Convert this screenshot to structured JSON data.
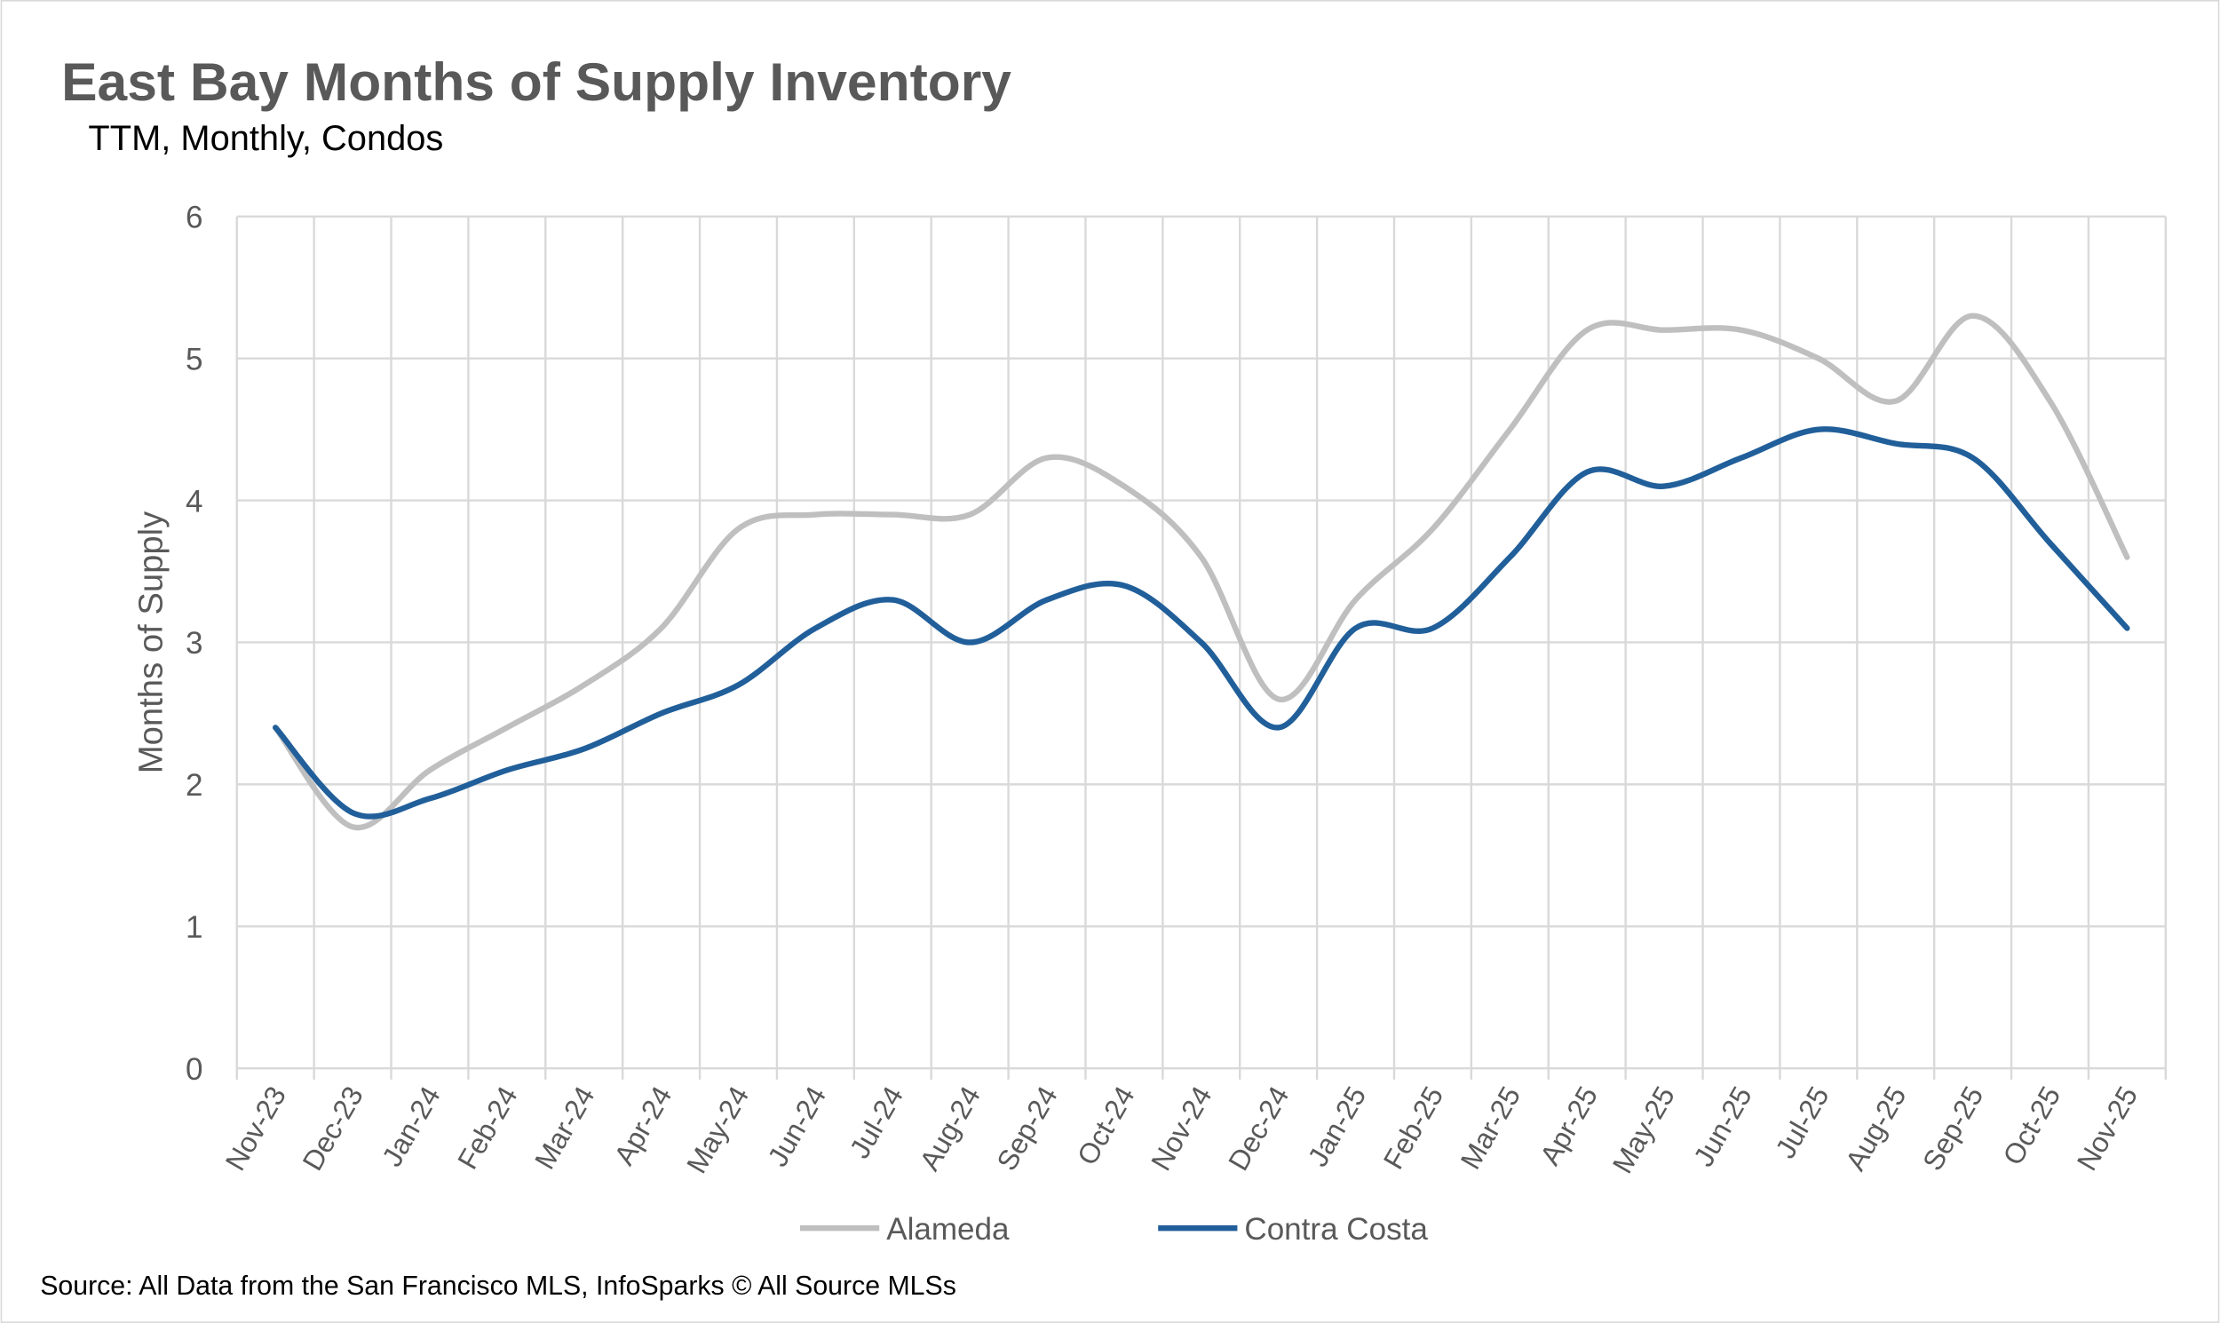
{
  "chart_data": {
    "type": "line",
    "title": "East Bay Months of Supply Inventory",
    "subtitle": "TTM, Monthly, Condos",
    "y_label": "Months of Supply",
    "source": "Source: All Data from the San Francisco MLS, InfoSparks © All Source MLSs",
    "categories": [
      "Nov-23",
      "Dec-23",
      "Jan-24",
      "Feb-24",
      "Mar-24",
      "Apr-24",
      "May-24",
      "Jun-24",
      "Jul-24",
      "Aug-24",
      "Sep-24",
      "Oct-24",
      "Nov-24",
      "Dec-24",
      "Jan-25",
      "Feb-25",
      "Mar-25",
      "Apr-25",
      "May-25",
      "Jun-25",
      "Jul-25",
      "Aug-25",
      "Sep-25",
      "Oct-25",
      "Nov-25"
    ],
    "series": [
      {
        "name": "Alameda",
        "color": "#bfbfbf",
        "values": [
          2.4,
          1.7,
          2.1,
          2.4,
          2.7,
          3.1,
          3.8,
          3.9,
          3.9,
          3.9,
          4.3,
          4.1,
          3.6,
          2.6,
          3.3,
          3.8,
          4.5,
          5.2,
          5.2,
          5.2,
          5.0,
          4.7,
          5.3,
          4.7,
          3.6
        ]
      },
      {
        "name": "Contra Costa",
        "color": "#215f9a",
        "values": [
          2.4,
          1.8,
          1.9,
          2.1,
          2.25,
          2.5,
          2.7,
          3.1,
          3.3,
          3.0,
          3.3,
          3.4,
          3.0,
          2.4,
          3.1,
          3.1,
          3.6,
          4.2,
          4.1,
          4.3,
          4.5,
          4.4,
          4.3,
          3.7,
          3.1
        ]
      }
    ],
    "ylim": [
      0,
      6
    ],
    "yticks": [
      0,
      1,
      2,
      3,
      4,
      5,
      6
    ],
    "grid": true,
    "legend": "bottom"
  }
}
